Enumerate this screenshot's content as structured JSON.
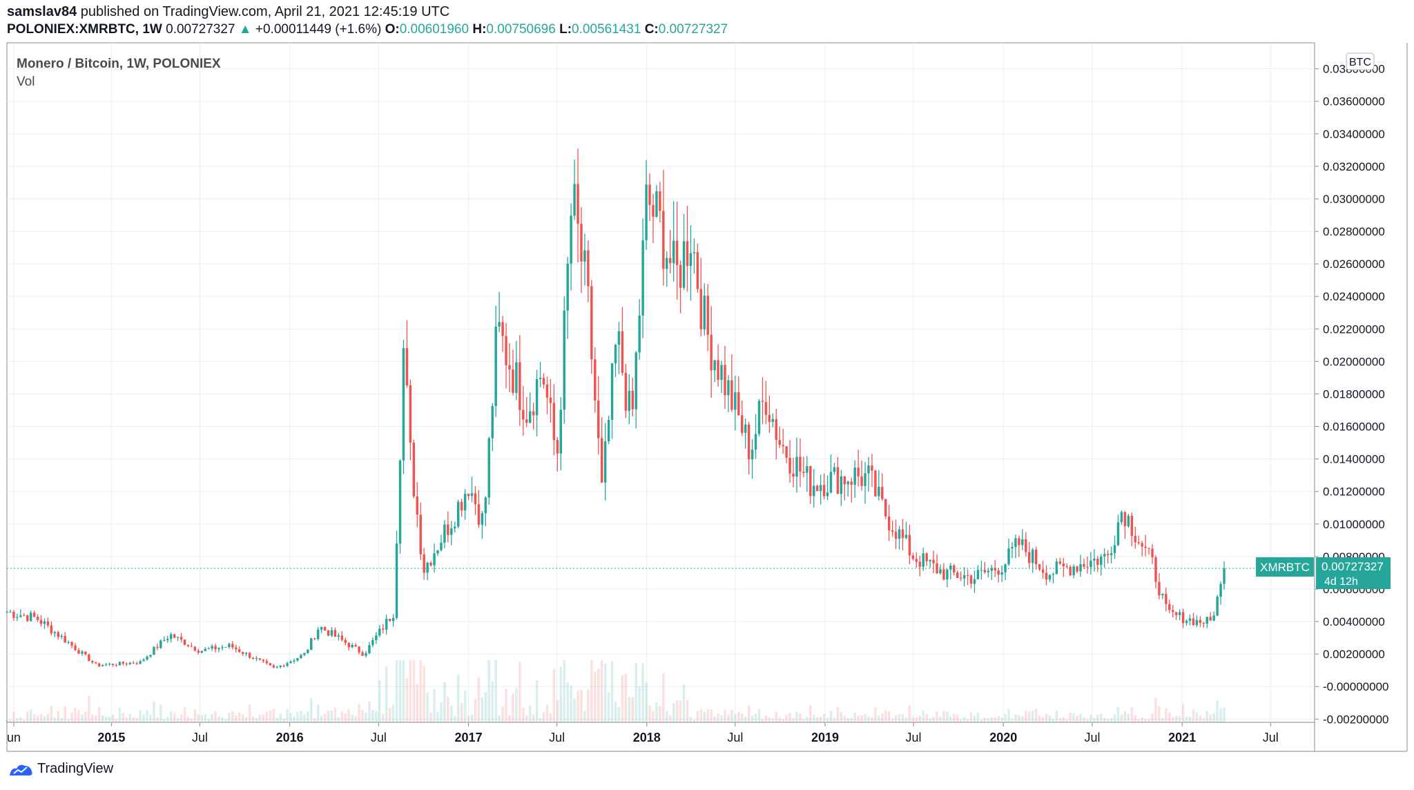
{
  "header": {
    "publisher": "samslav84",
    "published_text": "published on TradingView.com, April 21, 2021 12:45:19 UTC",
    "symbol": "POLONIEX:XMRBTC, 1W",
    "last_price": "0.00727327",
    "change": "+0.00011449 (+1.6%)",
    "open_label": "O:",
    "open": "0.00601960",
    "high_label": "H:",
    "high": "0.00750696",
    "low_label": "L:",
    "low": "0.00561431",
    "close_label": "C:",
    "close": "0.00727327"
  },
  "legend": {
    "title": "Monero / Bitcoin, 1W, POLONIEX",
    "volume_label": "Vol"
  },
  "price_tag": {
    "symbol": "XMRBTC",
    "price": "0.00727327",
    "countdown": "4d 12h"
  },
  "footer": {
    "brand": "TradingView"
  },
  "colors": {
    "up": "#26a69a",
    "down": "#ef5350",
    "grid": "#e6eef5",
    "axis": "#131722",
    "border": "#8a8a8a"
  },
  "chart_data": {
    "type": "candlestick",
    "title": "Monero / Bitcoin, 1W, POLONIEX",
    "currency_label": "BTC",
    "x_tick_labels": [
      "un",
      "2015",
      "Jul",
      "2016",
      "Jul",
      "2017",
      "Jul",
      "2018",
      "Jul",
      "2019",
      "Jul",
      "2020",
      "Jul",
      "2021",
      "Jul"
    ],
    "y_tick_labels": [
      "-0.00200000",
      "-0.00000000",
      "0.00200000",
      "0.00400000",
      "0.00600000",
      "0.00800000",
      "0.01000000",
      "0.01200000",
      "0.01400000",
      "0.01600000",
      "0.01800000",
      "0.02000000",
      "0.02200000",
      "0.02400000",
      "0.02600000",
      "0.02800000",
      "0.03000000",
      "0.03200000",
      "0.03400000",
      "0.03600000",
      "0.03800000"
    ],
    "ylim": [
      -0.0022,
      0.0396
    ],
    "grid": true,
    "last_close": 0.00727327,
    "series": [
      {
        "date": "2014-06",
        "close": 0.0046
      },
      {
        "date": "2014-08",
        "close": 0.0042
      },
      {
        "date": "2014-10",
        "close": 0.0028
      },
      {
        "date": "2014-12",
        "close": 0.0013
      },
      {
        "date": "2015-03",
        "close": 0.0015
      },
      {
        "date": "2015-05",
        "close": 0.0032
      },
      {
        "date": "2015-07",
        "close": 0.0022
      },
      {
        "date": "2015-09",
        "close": 0.0025
      },
      {
        "date": "2015-12",
        "close": 0.0011
      },
      {
        "date": "2016-02",
        "close": 0.002
      },
      {
        "date": "2016-03",
        "close": 0.0037
      },
      {
        "date": "2016-06",
        "close": 0.002
      },
      {
        "date": "2016-08",
        "close": 0.0046
      },
      {
        "date": "2016-08-22",
        "close": 0.0215
      },
      {
        "date": "2016-09",
        "close": 0.015
      },
      {
        "date": "2016-10",
        "close": 0.0072
      },
      {
        "date": "2016-12",
        "close": 0.0105
      },
      {
        "date": "2017-01",
        "close": 0.0125
      },
      {
        "date": "2017-02",
        "close": 0.01
      },
      {
        "date": "2017-03",
        "close": 0.022
      },
      {
        "date": "2017-05",
        "close": 0.017
      },
      {
        "date": "2017-06",
        "close": 0.0195
      },
      {
        "date": "2017-07",
        "close": 0.014
      },
      {
        "date": "2017-08",
        "close": 0.03
      },
      {
        "date": "2017-09",
        "close": 0.024
      },
      {
        "date": "2017-10",
        "close": 0.012
      },
      {
        "date": "2017-11",
        "close": 0.0215
      },
      {
        "date": "2017-12",
        "close": 0.016
      },
      {
        "date": "2018-01",
        "close": 0.03
      },
      {
        "date": "2018-02",
        "close": 0.028
      },
      {
        "date": "2018-03",
        "close": 0.025
      },
      {
        "date": "2018-04",
        "close": 0.028
      },
      {
        "date": "2018-05",
        "close": 0.022
      },
      {
        "date": "2018-07",
        "close": 0.017
      },
      {
        "date": "2018-08",
        "close": 0.0145
      },
      {
        "date": "2018-09",
        "close": 0.018
      },
      {
        "date": "2018-10",
        "close": 0.015
      },
      {
        "date": "2018-12",
        "close": 0.0125
      },
      {
        "date": "2019-03",
        "close": 0.013
      },
      {
        "date": "2019-04",
        "close": 0.0128
      },
      {
        "date": "2019-05",
        "close": 0.0108
      },
      {
        "date": "2019-07",
        "close": 0.008
      },
      {
        "date": "2019-09",
        "close": 0.007
      },
      {
        "date": "2019-11",
        "close": 0.0067
      },
      {
        "date": "2020-01",
        "close": 0.0075
      },
      {
        "date": "2020-02",
        "close": 0.0088
      },
      {
        "date": "2020-04",
        "close": 0.007
      },
      {
        "date": "2020-06",
        "close": 0.0075
      },
      {
        "date": "2020-08",
        "close": 0.008
      },
      {
        "date": "2020-09",
        "close": 0.011
      },
      {
        "date": "2020-11",
        "close": 0.0075
      },
      {
        "date": "2020-12",
        "close": 0.0045
      },
      {
        "date": "2021-02",
        "close": 0.004
      },
      {
        "date": "2021-03",
        "close": 0.004
      },
      {
        "date": "2021-04",
        "close": 0.00727327
      }
    ]
  }
}
